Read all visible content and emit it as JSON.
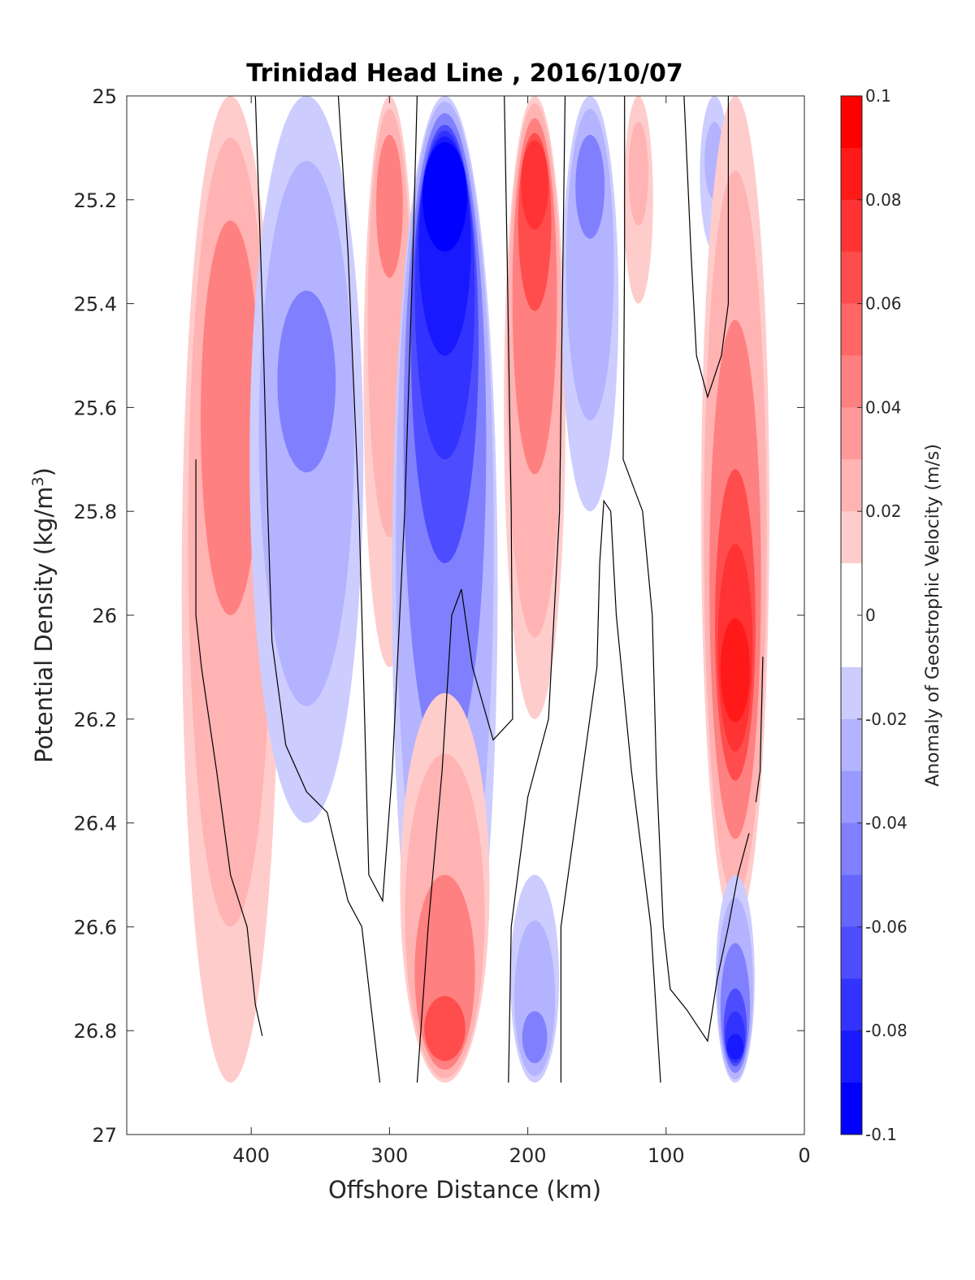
{
  "chart_data": {
    "type": "heatmap",
    "subtype": "filled-contour",
    "title": "Trinidad Head Line , 2016/10/07",
    "xlabel": "Offshore Distance (km)",
    "ylabel": "Potential Density (kg/m3)",
    "ylabel_main": "Potential Density (kg/m",
    "ylabel_sup": "3",
    "ylabel_close": ")",
    "xlim": [
      490,
      0
    ],
    "x_reversed": true,
    "ylim": [
      25,
      27
    ],
    "y_reversed": true,
    "xticks": [
      400,
      300,
      200,
      100,
      0
    ],
    "xtick_labels": [
      "400",
      "300",
      "200",
      "100",
      "0"
    ],
    "yticks": [
      25,
      25.2,
      25.4,
      25.6,
      25.8,
      26,
      26.2,
      26.4,
      26.6,
      26.8,
      27
    ],
    "ytick_labels": [
      "25",
      "25.2",
      "25.4",
      "25.6",
      "25.8",
      "26",
      "26.2",
      "26.4",
      "26.6",
      "26.8",
      "27"
    ],
    "colorbar": {
      "label": "Anomaly of Geostrophic Velocity (m/s)",
      "range": [
        -0.1,
        0.1
      ],
      "levels": 20,
      "ticks": [
        0.1,
        0.08,
        0.06,
        0.04,
        0.02,
        0,
        -0.02,
        -0.04,
        -0.06,
        -0.08,
        -0.1
      ],
      "tick_labels": [
        "0.1",
        "0.08",
        "0.06",
        "0.04",
        "0.02",
        "0",
        "-0.02",
        "-0.04",
        "-0.06",
        "-0.08",
        "-0.1"
      ],
      "colormap": "blue-white-red",
      "neg_color": "#0000ff",
      "zero_color": "#ffffff",
      "pos_color": "#ff0000"
    },
    "data_extent": {
      "x": [
        440,
        30
      ],
      "y": [
        25,
        26.9
      ]
    },
    "anomaly_features": [
      {
        "name": "positive-band-415km",
        "x": 415,
        "y_range": [
          25,
          26.9
        ],
        "peak_value": 0.045,
        "peak_y": 25.4
      },
      {
        "name": "negative-band-360km",
        "x": 360,
        "y_range": [
          25,
          26.4
        ],
        "peak_value": -0.035,
        "peak_y": 25.5
      },
      {
        "name": "positive-band-300km",
        "x": 300,
        "y_range": [
          25,
          26.1
        ],
        "peak_value": 0.035,
        "peak_y": 25.1
      },
      {
        "name": "negative-core-260km",
        "x": 260,
        "y_range": [
          25,
          26.9
        ],
        "peak_value": -0.085,
        "peak_y": 25.1
      },
      {
        "name": "positive-core-195km",
        "x": 195,
        "y_range": [
          25,
          26.2
        ],
        "peak_value": 0.065,
        "peak_y": 25.1
      },
      {
        "name": "negative-band-155km",
        "x": 155,
        "y_range": [
          25,
          25.8
        ],
        "peak_value": -0.035,
        "peak_y": 25.1
      },
      {
        "name": "positive-band-120km",
        "x": 120,
        "y_range": [
          25,
          25.4
        ],
        "peak_value": 0.015,
        "peak_y": 25.1
      },
      {
        "name": "negative-band-65km",
        "x": 65,
        "y_range": [
          25,
          25.3
        ],
        "peak_value": -0.015,
        "peak_y": 25.1
      },
      {
        "name": "positive-core-50km",
        "x": 50,
        "y_range": [
          25,
          26.6
        ],
        "peak_value": 0.075,
        "peak_y": 26.15
      },
      {
        "name": "positive-core-260km-deep",
        "x": 260,
        "y_range": [
          26.15,
          26.9
        ],
        "peak_value": 0.06,
        "peak_y": 26.85
      },
      {
        "name": "negative-core-50km-deep",
        "x": 50,
        "y_range": [
          26.5,
          26.9
        ],
        "peak_value": -0.075,
        "peak_y": 26.85
      },
      {
        "name": "negative-band-195km-deep",
        "x": 195,
        "y_range": [
          26.5,
          26.9
        ],
        "peak_value": -0.035,
        "peak_y": 26.85
      }
    ],
    "grid": false,
    "legend": "none"
  }
}
